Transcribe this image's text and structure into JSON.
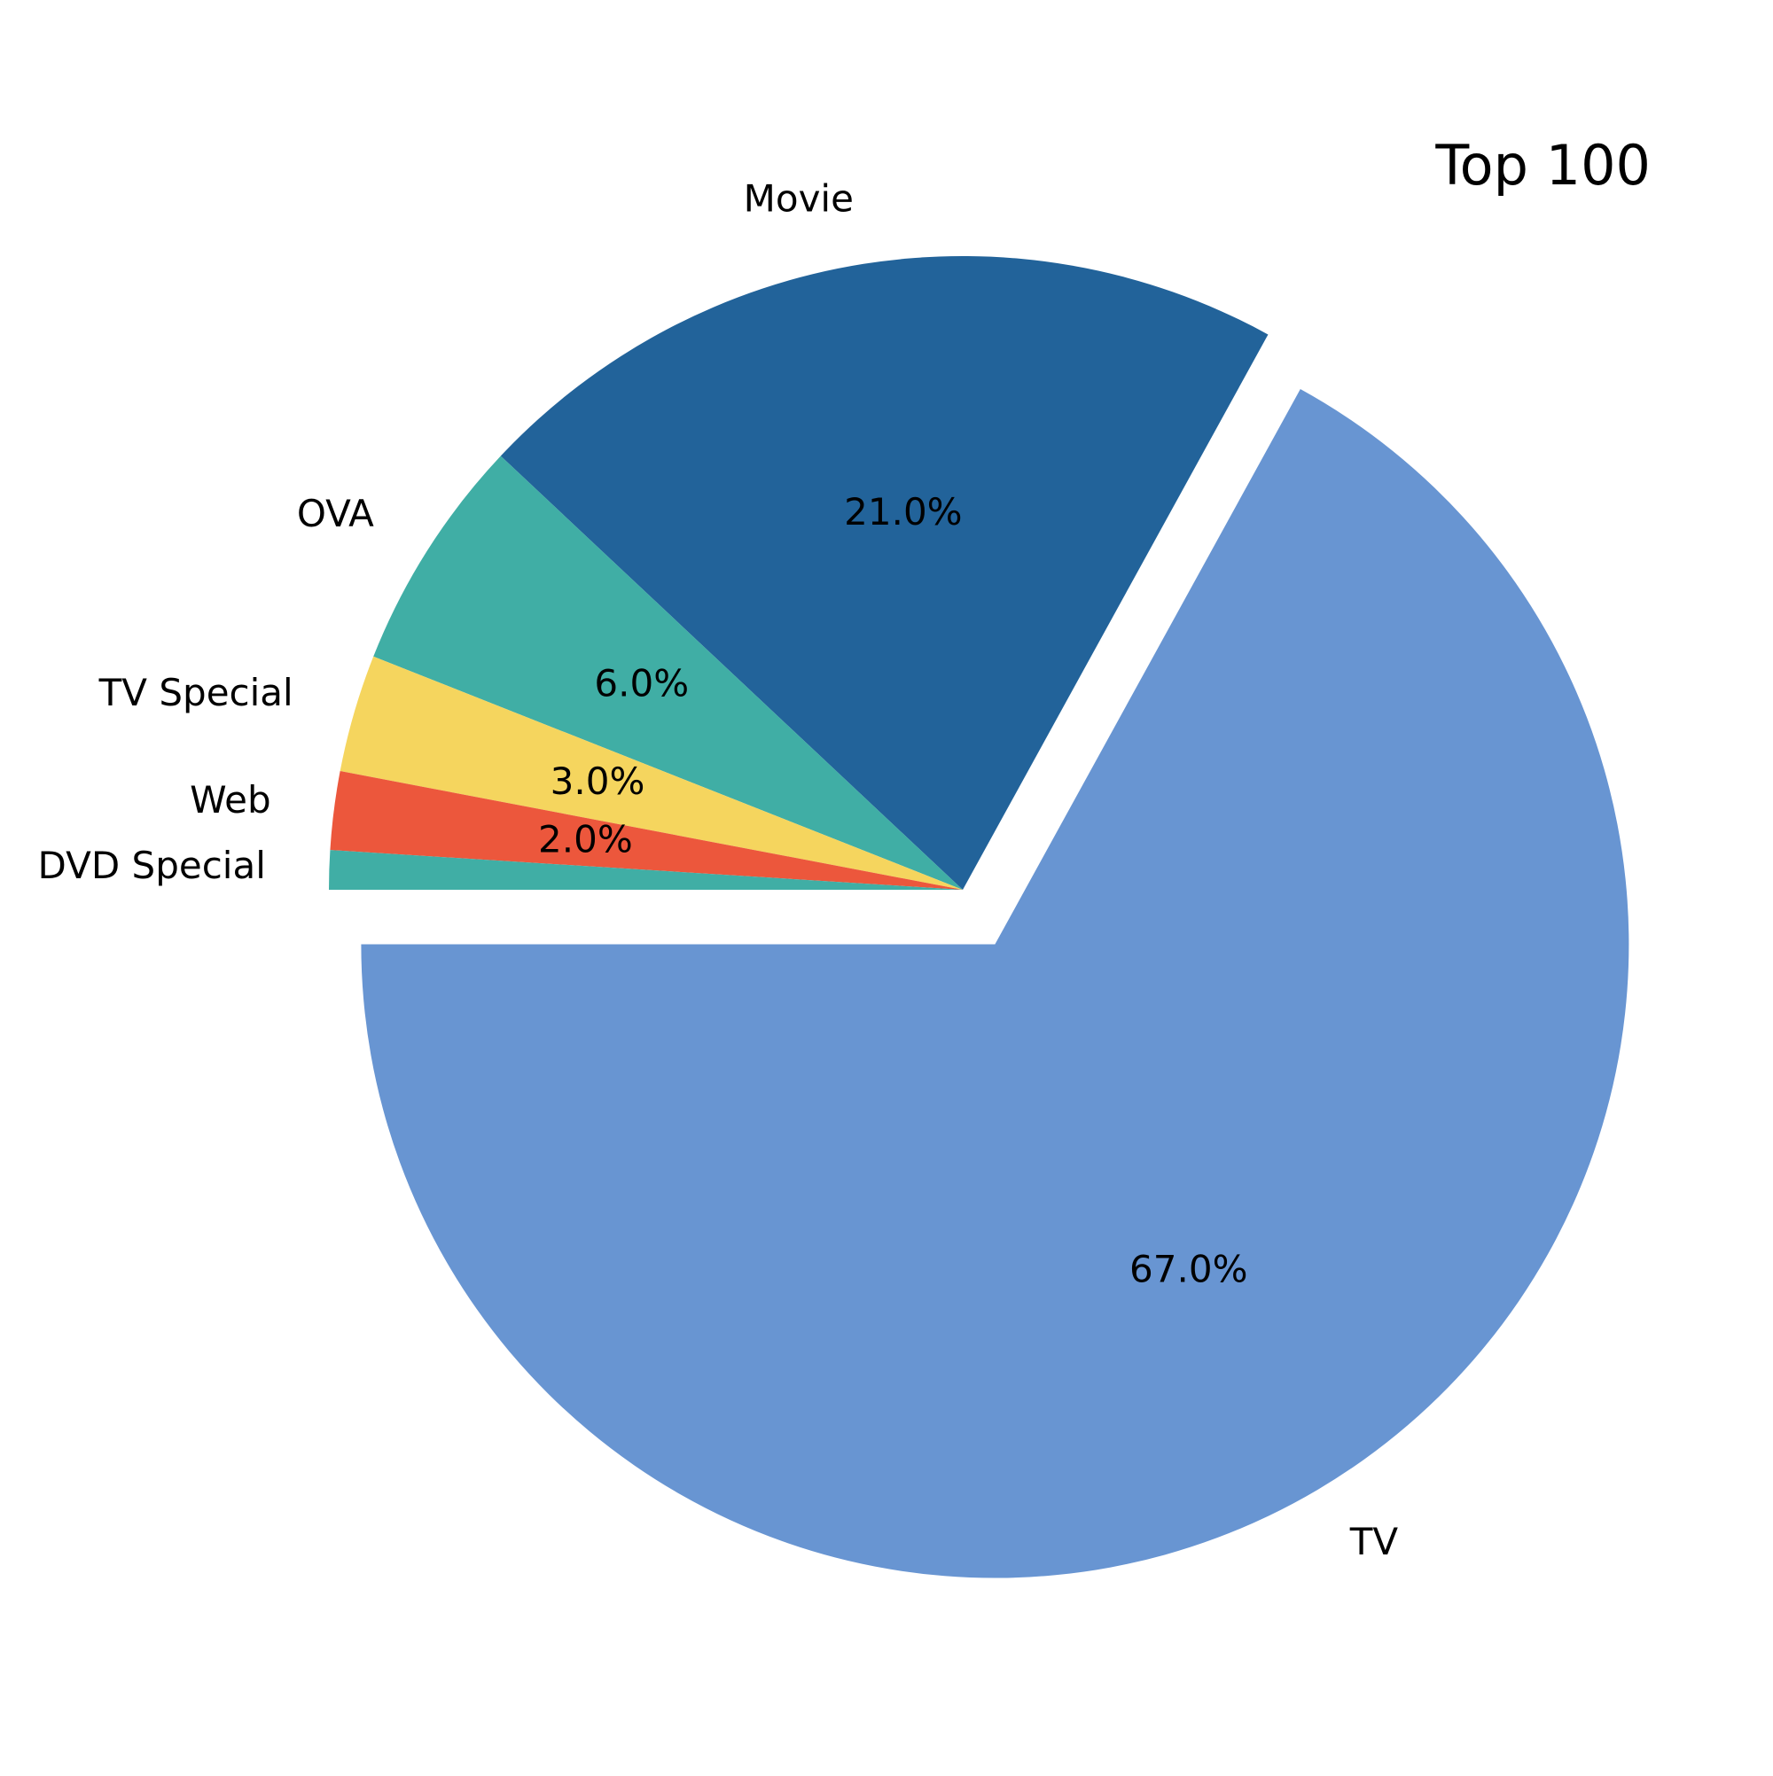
{
  "chart_data": {
    "type": "pie",
    "title": "Top 100",
    "slices": [
      {
        "label": "TV",
        "value": 67.0,
        "pct_label": "67.0%",
        "color": "#6895d2",
        "explode": true
      },
      {
        "label": "Movie",
        "value": 21.0,
        "pct_label": "21.0%",
        "color": "#22639a",
        "explode": false
      },
      {
        "label": "OVA",
        "value": 6.0,
        "pct_label": "6.0%",
        "color": "#40aea5",
        "explode": false
      },
      {
        "label": "TV Special",
        "value": 3.0,
        "pct_label": "3.0%",
        "color": "#f5d55e",
        "explode": false
      },
      {
        "label": "Web",
        "value": 2.0,
        "pct_label": "2.0%",
        "color": "#ec573c",
        "explode": false
      },
      {
        "label": "DVD Special",
        "value": 1.0,
        "pct_label": "",
        "color": "#40aea5",
        "explode": false
      }
    ],
    "legend": "none"
  }
}
